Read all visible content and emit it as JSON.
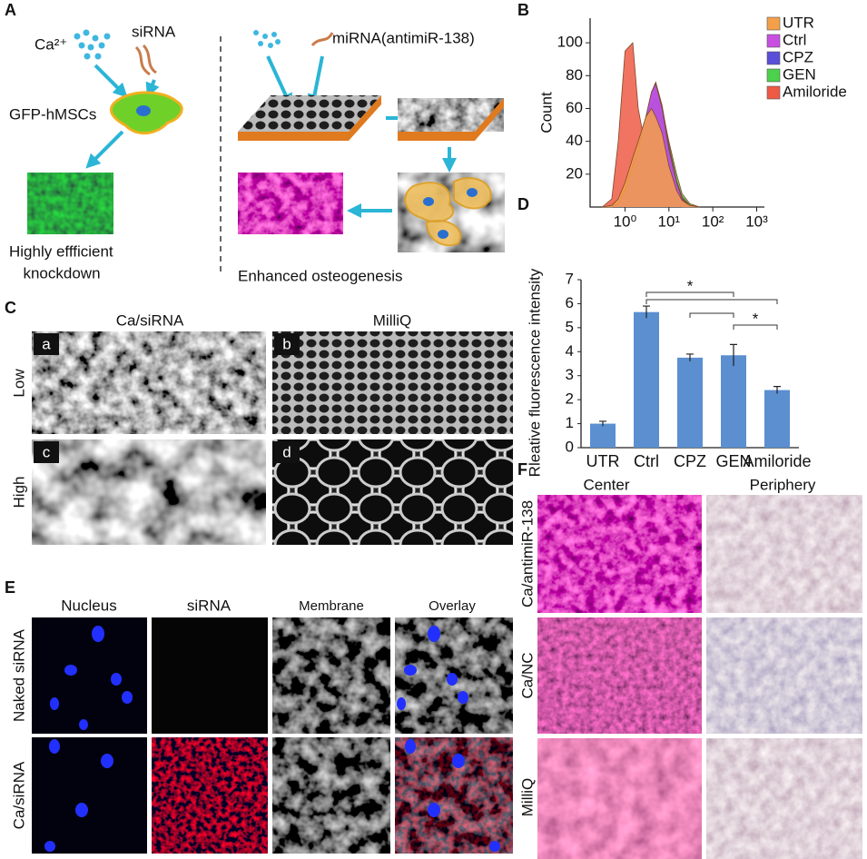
{
  "panel_a": {
    "letter": "A",
    "ion_label": "Ca²⁺",
    "sirna_label": "siRNA",
    "cell_label": "GFP-hMSCs",
    "result_left": [
      "Highly effficient",
      "knockdown"
    ],
    "mirna_label": "miRNA(antimiR-138)",
    "result_right": "Enhanced osteogenesis"
  },
  "chart_data": [
    {
      "type": "area",
      "panel_letter": "B",
      "y_label": "Count",
      "log_x": true,
      "x": [
        0.3,
        0.5,
        0.7,
        1,
        1.5,
        2,
        3,
        4,
        5,
        7,
        10,
        15,
        20,
        30,
        50
      ],
      "series": [
        {
          "name": "UTR",
          "color": "#f4a04a",
          "values": [
            0,
            1,
            5,
            15,
            30,
            40,
            55,
            60,
            55,
            45,
            25,
            10,
            4,
            1,
            0
          ]
        },
        {
          "name": "Ctrl",
          "color": "#c84fe0",
          "values": [
            0,
            0,
            2,
            10,
            25,
            35,
            55,
            70,
            75,
            60,
            35,
            15,
            5,
            1,
            0
          ]
        },
        {
          "name": "CPZ",
          "color": "#5a4fd8",
          "values": [
            0,
            0,
            2,
            10,
            25,
            35,
            55,
            70,
            76,
            62,
            38,
            16,
            6,
            1,
            0
          ]
        },
        {
          "name": "GEN",
          "color": "#4cd14c",
          "values": [
            0,
            0,
            1,
            8,
            20,
            30,
            50,
            62,
            66,
            60,
            40,
            20,
            8,
            2,
            0
          ]
        },
        {
          "name": "Amiloride",
          "color": "#ee5a45",
          "values": [
            0,
            5,
            40,
            95,
            100,
            60,
            35,
            25,
            15,
            6,
            2,
            1,
            0,
            0,
            0
          ]
        }
      ],
      "xlim": [
        0.16,
        1500
      ],
      "xticks": [
        {
          "value": 1,
          "label": "10⁰"
        },
        {
          "value": 10,
          "label": "10¹"
        },
        {
          "value": 100,
          "label": "10²"
        },
        {
          "value": 1000,
          "label": "10³"
        }
      ],
      "ylim": [
        0,
        115
      ],
      "yticks": [
        20,
        40,
        60,
        80,
        100
      ],
      "legend": "top-right"
    },
    {
      "type": "bar",
      "panel_letter": "D",
      "y_label": "Rleative fluorescence intensity",
      "categories": [
        "UTR",
        "Ctrl",
        "CPZ",
        "GEN",
        "Amiloride"
      ],
      "values": [
        1,
        5.65,
        3.75,
        3.85,
        2.4
      ],
      "errors": [
        0.1,
        0.25,
        0.15,
        0.45,
        0.15
      ],
      "color": "#5b8fd0",
      "ylim": [
        0,
        7
      ],
      "yticks": [
        0,
        1,
        2,
        3,
        4,
        5,
        6,
        7
      ],
      "annotations": [
        "*",
        "*"
      ]
    }
  ],
  "panel_c": {
    "letter": "C",
    "columns": [
      "Ca/siRNA",
      "MilliQ"
    ],
    "rows": [
      "Low",
      "High"
    ],
    "image_labels": [
      "a",
      "b",
      "c",
      "d"
    ]
  },
  "panel_e": {
    "letter": "E",
    "columns": [
      "Nucleus",
      "siRNA",
      "Membrane",
      "Overlay"
    ],
    "rows": [
      "Naked siRNA",
      "Ca/siRNA"
    ]
  },
  "panel_f": {
    "letter": "F",
    "columns": [
      "Center",
      "Periphery"
    ],
    "rows": [
      "Ca/antimiR-138",
      "Ca/NC",
      "MilliQ"
    ]
  }
}
